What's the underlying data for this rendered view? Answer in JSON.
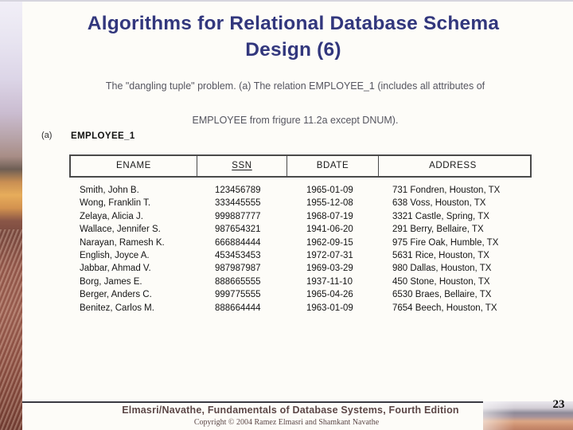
{
  "slide": {
    "title_lines": [
      "Algorithms for Relational Database Schema",
      "Design (6)"
    ],
    "subtitle_line1": "The \"dangling tuple\" problem. (a) The relation EMPLOYEE_1 (includes all attributes of",
    "subtitle_line2": "EMPLOYEE from frigure 11.2a except DNUM).",
    "figure_label": "(a)",
    "relation_name": "EMPLOYEE_1"
  },
  "table": {
    "columns": [
      "ENAME",
      "SSN",
      "BDATE",
      "ADDRESS"
    ],
    "key_column": "SSN",
    "rows": [
      [
        "Smith, John B.",
        "123456789",
        "1965-01-09",
        "731 Fondren, Houston, TX"
      ],
      [
        "Wong, Franklin T.",
        "333445555",
        "1955-12-08",
        "638 Voss, Houston, TX"
      ],
      [
        "Zelaya, Alicia J.",
        "999887777",
        "1968-07-19",
        "3321 Castle, Spring, TX"
      ],
      [
        "Wallace, Jennifer S.",
        "987654321",
        "1941-06-20",
        "291 Berry, Bellaire, TX"
      ],
      [
        "Narayan, Ramesh K.",
        "666884444",
        "1962-09-15",
        "975 Fire Oak, Humble, TX"
      ],
      [
        "English, Joyce A.",
        "453453453",
        "1972-07-31",
        "5631 Rice, Houston, TX"
      ],
      [
        "Jabbar, Ahmad V.",
        "987987987",
        "1969-03-29",
        "980 Dallas, Houston, TX"
      ],
      [
        "Borg, James E.",
        "888665555",
        "1937-11-10",
        "450 Stone, Houston, TX"
      ],
      [
        "Berger, Anders C.",
        "999775555",
        "1965-04-26",
        "6530 Braes, Bellaire, TX"
      ],
      [
        "Benitez, Carlos M.",
        "888664444",
        "1963-01-09",
        "7654 Beech, Houston, TX"
      ]
    ]
  },
  "footer": {
    "book": "Elmasri/Navathe, Fundamentals of Database Systems, Fourth Edition",
    "copyright": "Copyright © 2004 Ramez Elmasri and Shamkant Navathe",
    "page_number": "23"
  },
  "colors": {
    "title": "#32377d",
    "subtitle": "#55555f",
    "footer_text": "#5c4747",
    "table_border": "#4a4a4a"
  }
}
